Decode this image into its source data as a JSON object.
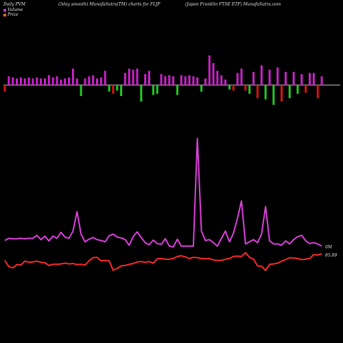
{
  "header": {
    "left": "Daily PVM",
    "mid": "(5day smooth) MunafaSutra(TM) charts for FLJP",
    "right": "(Japan  Franklin  FTSE ETF) MunafaSutra.com"
  },
  "legend": [
    {
      "label": "Volume",
      "color": "#cc33cc"
    },
    {
      "label": "Price",
      "color": "#e8643a"
    }
  ],
  "colors": {
    "background": "#000000",
    "volume_line": "#e040e0",
    "price_line": "#ff2a2a",
    "bar_up": "#cc22cc",
    "bar_down": "#dd1111",
    "bar_neg": "#22cc22",
    "baseline": "#cccccc"
  },
  "chart_data": {
    "type": "line",
    "x_index": [
      1,
      2,
      3,
      4,
      5,
      6,
      7,
      8,
      9,
      10,
      11,
      12,
      13,
      14,
      15,
      16,
      17,
      18,
      19,
      20,
      21,
      22,
      23,
      24,
      25,
      26,
      27,
      28,
      29,
      30,
      31,
      32,
      33,
      34,
      35,
      36,
      37,
      38,
      39,
      40,
      41,
      42,
      43,
      44,
      45,
      46,
      47,
      48,
      49,
      50,
      51,
      52,
      53,
      54,
      55,
      56,
      57,
      58,
      59,
      60,
      61,
      62,
      63,
      64,
      65,
      66,
      67,
      68,
      69,
      70,
      71,
      72,
      73,
      74,
      75,
      76,
      77,
      78,
      79,
      80
    ],
    "series": [
      {
        "name": "Volume",
        "values": [
          23,
          28,
          27,
          27,
          28,
          27,
          28,
          28,
          35,
          25,
          33,
          22,
          33,
          28,
          42,
          31,
          28,
          45,
          90,
          38,
          20,
          26,
          30,
          25,
          23,
          20,
          34,
          38,
          31,
          29,
          25,
          12,
          32,
          43,
          30,
          18,
          13,
          24,
          16,
          14,
          27,
          10,
          8,
          26,
          10,
          10,
          10,
          10,
          260,
          45,
          23,
          25,
          18,
          10,
          28,
          45,
          20,
          40,
          75,
          115,
          15,
          20,
          25,
          18,
          38,
          102,
          22,
          15,
          15,
          12,
          22,
          15,
          25,
          32,
          35,
          22,
          16,
          18,
          15,
          10
        ]
      },
      {
        "name": "Price",
        "values": [
          0.6,
          -1.0,
          -1.3,
          -0.5,
          -0.6,
          0.4,
          0.1,
          0.2,
          0.4,
          0.1,
          0.0,
          -0.7,
          -0.4,
          -0.4,
          -0.3,
          -0.1,
          -0.3,
          -0.2,
          -0.5,
          -0.4,
          -0.6,
          0.5,
          1.3,
          1.4,
          0.5,
          0.6,
          0.5,
          -1.9,
          -1.5,
          -0.8,
          -0.7,
          -0.4,
          -0.2,
          0.2,
          0.3,
          0.1,
          0.3,
          -0.1,
          1.0,
          1.1,
          0.9,
          0.9,
          1.1,
          1.6,
          1.8,
          1.5,
          1.1,
          1.4,
          1.3,
          1.1,
          1.0,
          1.1,
          0.7,
          0.6,
          0.6,
          0.9,
          1.1,
          1.6,
          1.7,
          1.6,
          2.6,
          1.4,
          0.9,
          -0.8,
          -0.9,
          -2.0,
          -0.4,
          -0.3,
          -0.1,
          0.4,
          0.8,
          1.3,
          1.2,
          1.1,
          0.8,
          0.9,
          1.1,
          2.1,
          2.0,
          2.3
        ]
      }
    ],
    "bars": [
      -6,
      8,
      7,
      6,
      7,
      6,
      7,
      6,
      7,
      6,
      6,
      9,
      7,
      8,
      5,
      6,
      7,
      15,
      6,
      -10,
      6,
      8,
      9,
      6,
      7,
      13,
      -6,
      -8,
      -5,
      -10,
      11,
      15,
      14,
      15,
      -15,
      10,
      13,
      -9,
      -8,
      10,
      8,
      9,
      8,
      -9,
      9,
      8,
      9,
      8,
      7,
      -6,
      6,
      27,
      20,
      13,
      9,
      5,
      -4,
      -5,
      11,
      15,
      -5,
      -8,
      12,
      -12,
      18,
      -13,
      14,
      -18,
      16,
      -15,
      12,
      -12,
      12,
      -8,
      10,
      -7,
      11,
      11,
      -12,
      8
    ]
  },
  "value_labels": {
    "volume": "0M",
    "price": "85.89"
  }
}
